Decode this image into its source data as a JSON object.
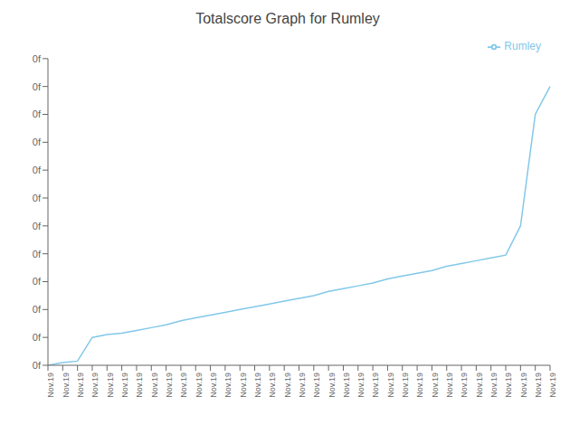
{
  "chart_data": {
    "type": "line",
    "title": "Totalscore Graph for Rumley",
    "categories": [
      "Nov.19",
      "Nov.19",
      "Nov.19",
      "Nov.19",
      "Nov.19",
      "Nov.19",
      "Nov.19",
      "Nov.19",
      "Nov.19",
      "Nov.19",
      "Nov.19",
      "Nov.19",
      "Nov.19",
      "Nov.19",
      "Nov.19",
      "Nov.19",
      "Nov.19",
      "Nov.19",
      "Nov.19",
      "Nov.19",
      "Nov.19",
      "Nov.19",
      "Nov.19",
      "Nov.19",
      "Nov.19",
      "Nov.19",
      "Nov.19",
      "Nov.19",
      "Nov.19",
      "Nov.19",
      "Nov.19",
      "Nov.19",
      "Nov.19",
      "Nov.19",
      "Nov.19"
    ],
    "series": [
      {
        "name": "Rumley",
        "color": "#82c8e8",
        "values": [
          0,
          2,
          3,
          20,
          22,
          23,
          25,
          27,
          29,
          32,
          34,
          36,
          38,
          40,
          42,
          44,
          46,
          48,
          50,
          53,
          55,
          57,
          59,
          62,
          64,
          66,
          68,
          71,
          73,
          75,
          77,
          79,
          100,
          180,
          200
        ]
      }
    ],
    "ylim": [
      0,
      220
    ],
    "yticks": [
      {
        "value": 0,
        "label": "0f"
      },
      {
        "value": 20,
        "label": "0f"
      },
      {
        "value": 40,
        "label": "0f"
      },
      {
        "value": 60,
        "label": "0f"
      },
      {
        "value": 80,
        "label": "0f"
      },
      {
        "value": 100,
        "label": "0f"
      },
      {
        "value": 120,
        "label": "0f"
      },
      {
        "value": 140,
        "label": "0f"
      },
      {
        "value": 160,
        "label": "0f"
      },
      {
        "value": 180,
        "label": "0f"
      },
      {
        "value": 200,
        "label": "0f"
      },
      {
        "value": 220,
        "label": "0f"
      }
    ],
    "grid": false,
    "legend": "upper right"
  }
}
